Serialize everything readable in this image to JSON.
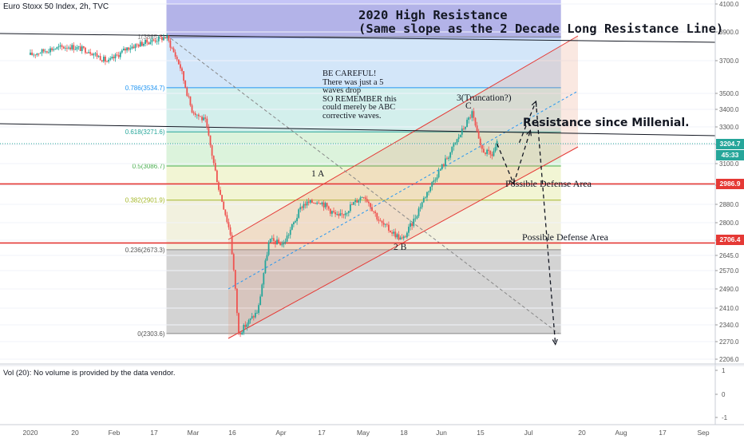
{
  "header": {
    "symbol_text": "Euro Stoxx 50 Index, 2h, TVC"
  },
  "volume_pane": {
    "text": "Vol (20): No volume is provided by the data vendor.",
    "ticks": [
      "1",
      "0",
      "-1"
    ]
  },
  "annotations": {
    "title_line1": "2020 High Resistance",
    "title_line2": "(Same slope as the 2 Decade Long Resistance Line)",
    "careful": "BE CAREFUL!\nThere was just a 5\nwaves drop\nSO REMEMBER this\ncould merely be ABC\ncorrective waves.",
    "resistance_millenial": "Resistance since Millenial.",
    "defense_upper": "Possible Defense Area",
    "defense_lower": "Possible Defense Area",
    "wave_1a": "1  A",
    "wave_2b": "2 B",
    "wave_3c_top": "3(Truncation?)",
    "wave_3c_bottom": "C"
  },
  "price_tags": {
    "current": {
      "value": "3204.7",
      "color": "#26a69a"
    },
    "countdown": {
      "value": "45:33",
      "color": "#26a69a"
    },
    "line_upper": {
      "value": "2986.9",
      "color": "#e53935"
    },
    "line_lower": {
      "value": "2706.4",
      "color": "#e53935"
    }
  },
  "chart_data": {
    "type": "line",
    "title": "Euro Stoxx 50 Index, 2h, TVC",
    "y_axis_ticks": [
      4100,
      3900,
      3700,
      3500,
      3400,
      3300,
      3200,
      3100,
      2980,
      2880,
      2800,
      2720,
      2645,
      2570,
      2490,
      2410,
      2340,
      2270,
      2206
    ],
    "y_axis_tick_labels": [
      "4100.0",
      "3900.0",
      "3700.0",
      "3500.0",
      "3400.0",
      "3300.0",
      "3200.0",
      "3100.0",
      "2980.0",
      "2880.0",
      "2800.0",
      "2720.0",
      "2645.0",
      "2570.0",
      "2490.0",
      "2410.0",
      "2340.0",
      "2270.0",
      "2206.0"
    ],
    "x_axis_labels": [
      "2020",
      "20",
      "Feb",
      "17",
      "Mar",
      "16",
      "Apr",
      "17",
      "May",
      "18",
      "Jun",
      "15",
      "Jul",
      "20",
      "Aug",
      "17",
      "Sep"
    ],
    "fibonacci_levels": [
      {
        "ratio": "1",
        "value": 3865.8,
        "label": "1(3865.8)"
      },
      {
        "ratio": "0.786",
        "value": 3534.7,
        "label": "0.786(3534.7)"
      },
      {
        "ratio": "0.618",
        "value": 3271.6,
        "label": "0.618(3271.6)"
      },
      {
        "ratio": "0.5",
        "value": 3086.7,
        "label": "0.5(3086.7)"
      },
      {
        "ratio": "0.382",
        "value": 2901.9,
        "label": "0.382(2901.9)"
      },
      {
        "ratio": "0.236",
        "value": 2673.3,
        "label": "0.236(2673.3)"
      },
      {
        "ratio": "0",
        "value": 2303.6,
        "label": "0(2303.6)"
      }
    ],
    "horizontal_lines": [
      {
        "name": "Possible Defense Area",
        "value": 2986.9,
        "color": "#e53935"
      },
      {
        "name": "Possible Defense Area",
        "value": 2706.4,
        "color": "#e53935"
      }
    ],
    "current_price": 3204.7,
    "price_path": [
      [
        "2020-01-01",
        3740
      ],
      [
        "2020-01-08",
        3780
      ],
      [
        "2020-01-15",
        3800
      ],
      [
        "2020-01-22",
        3770
      ],
      [
        "2020-01-29",
        3690
      ],
      [
        "2020-02-05",
        3790
      ],
      [
        "2020-02-12",
        3830
      ],
      [
        "2020-02-19",
        3865.8
      ],
      [
        "2020-02-24",
        3660
      ],
      [
        "2020-02-28",
        3400
      ],
      [
        "2020-03-04",
        3330
      ],
      [
        "2020-03-09",
        2950
      ],
      [
        "2020-03-13",
        2750
      ],
      [
        "2020-03-16",
        2303.6
      ],
      [
        "2020-03-23",
        2400
      ],
      [
        "2020-03-27",
        2720
      ],
      [
        "2020-04-01",
        2700
      ],
      [
        "2020-04-08",
        2880
      ],
      [
        "2020-04-14",
        2900
      ],
      [
        "2020-04-21",
        2820
      ],
      [
        "2020-04-30",
        2930
      ],
      [
        "2020-05-06",
        2800
      ],
      [
        "2020-05-14",
        2720
      ],
      [
        "2020-05-18",
        2810
      ],
      [
        "2020-05-26",
        3030
      ],
      [
        "2020-06-01",
        3180
      ],
      [
        "2020-06-08",
        3380
      ],
      [
        "2020-06-11",
        3180
      ],
      [
        "2020-06-15",
        3140
      ],
      [
        "2020-06-17",
        3204.7
      ]
    ],
    "projection_path": [
      [
        "2020-06-17",
        3204.7
      ],
      [
        "2020-06-23",
        2986.9
      ],
      [
        "2020-06-29",
        3280
      ],
      [
        "2020-06-25",
        3210
      ],
      [
        "2020-07-01",
        3450
      ],
      [
        "2020-07-08",
        2260
      ]
    ]
  }
}
